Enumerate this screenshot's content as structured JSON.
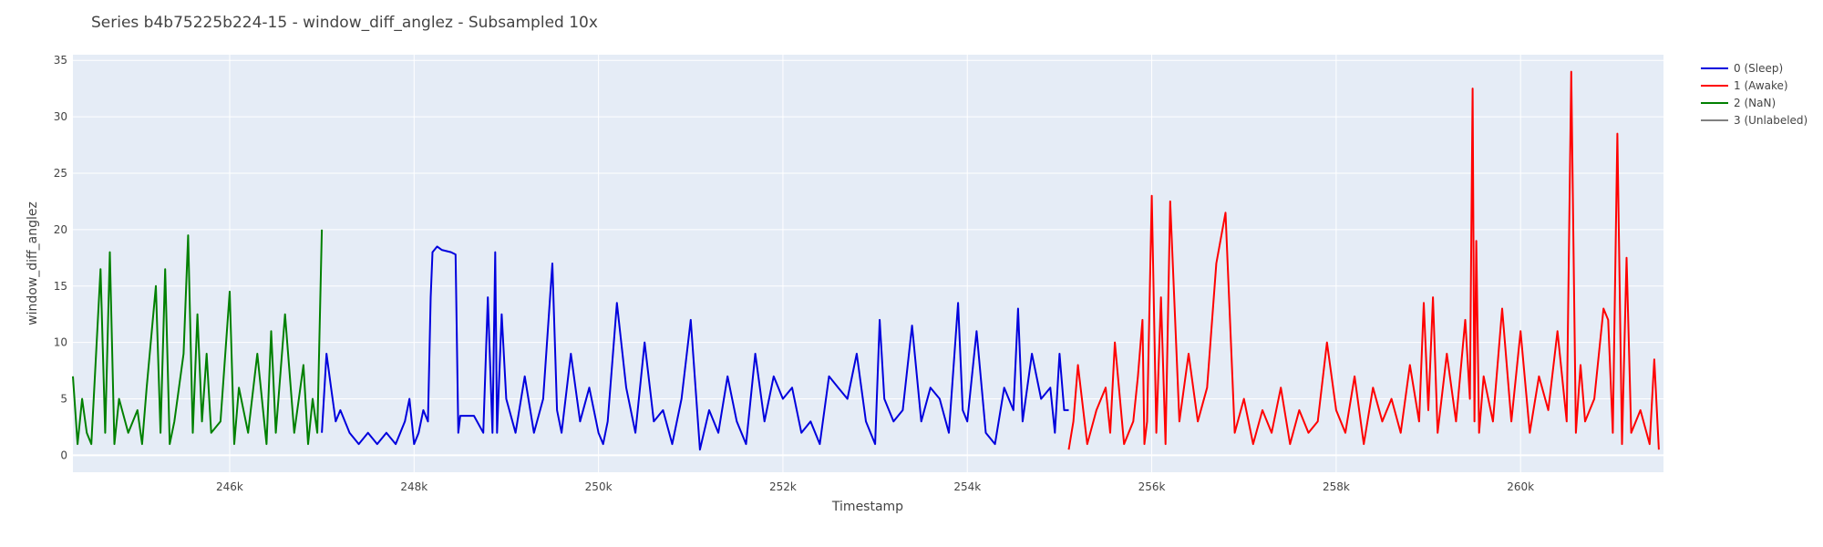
{
  "chart_data": {
    "type": "line",
    "title": "Series b4b75225b224-15 - window_diff_anglez - Subsampled 10x",
    "xlabel": "Timestamp",
    "ylabel": "window_diff_anglez",
    "xlim": [
      244300,
      261550
    ],
    "ylim": [
      -1.5,
      35.5
    ],
    "x_ticks": [
      246000,
      248000,
      250000,
      252000,
      254000,
      256000,
      258000,
      260000
    ],
    "x_tick_labels": [
      "246k",
      "248k",
      "250k",
      "252k",
      "254k",
      "256k",
      "258k",
      "260k"
    ],
    "y_ticks": [
      0,
      5,
      10,
      15,
      20,
      25,
      30,
      35
    ],
    "y_tick_labels": [
      "0",
      "5",
      "10",
      "15",
      "20",
      "25",
      "30",
      "35"
    ],
    "grid": true,
    "legend_position": "right",
    "series": [
      {
        "name": "0 (Sleep)",
        "color": "#0000dd",
        "x": [
          247000,
          247050,
          247100,
          247150,
          247200,
          247300,
          247400,
          247500,
          247600,
          247700,
          247800,
          247900,
          247950,
          248000,
          248050,
          248100,
          248150,
          248180,
          248200,
          248250,
          248300,
          248400,
          248450,
          248480,
          248500,
          248550,
          248650,
          248750,
          248800,
          248850,
          248880,
          248900,
          248950,
          249000,
          249100,
          249200,
          249300,
          249400,
          249500,
          249550,
          249600,
          249700,
          249800,
          249900,
          250000,
          250050,
          250100,
          250200,
          250300,
          250400,
          250500,
          250600,
          250700,
          250800,
          250900,
          251000,
          251100,
          251200,
          251300,
          251400,
          251500,
          251600,
          251700,
          251800,
          251900,
          252000,
          252100,
          252200,
          252300,
          252400,
          252500,
          252600,
          252700,
          252800,
          252900,
          253000,
          253050,
          253100,
          253200,
          253300,
          253400,
          253500,
          253600,
          253700,
          253800,
          253900,
          253950,
          254000,
          254100,
          254200,
          254300,
          254400,
          254500,
          254550,
          254600,
          254700,
          254800,
          254900,
          254950,
          255000,
          255050,
          255100
        ],
        "y": [
          2,
          9,
          6,
          3,
          4,
          2,
          1,
          2,
          1,
          2,
          1,
          3,
          5,
          1,
          2,
          4,
          3,
          14,
          18,
          18.5,
          18.2,
          18,
          17.8,
          2,
          3.5,
          3.5,
          3.5,
          2,
          14,
          2,
          18,
          2,
          12.5,
          5,
          2,
          7,
          2,
          5,
          17,
          4,
          2,
          9,
          3,
          6,
          2,
          1,
          3,
          13.5,
          6,
          2,
          10,
          3,
          4,
          1,
          5,
          12,
          0.5,
          4,
          2,
          7,
          3,
          1,
          9,
          3,
          7,
          5,
          6,
          2,
          3,
          1,
          7,
          6,
          5,
          9,
          3,
          1,
          12,
          5,
          3,
          4,
          11.5,
          3,
          6,
          5,
          2,
          13.5,
          4,
          3,
          11,
          2,
          1,
          6,
          4,
          13,
          3,
          9,
          5,
          6,
          2,
          9,
          4,
          4
        ]
      },
      {
        "name": "1 (Awake)",
        "color": "#ff0000",
        "x": [
          255100,
          255150,
          255200,
          255300,
          255400,
          255500,
          255550,
          255600,
          255700,
          255800,
          255850,
          255900,
          255920,
          255950,
          256000,
          256050,
          256100,
          256150,
          256200,
          256300,
          256400,
          256500,
          256600,
          256700,
          256800,
          256900,
          257000,
          257100,
          257200,
          257300,
          257400,
          257500,
          257600,
          257700,
          257800,
          257900,
          258000,
          258100,
          258200,
          258300,
          258400,
          258500,
          258600,
          258700,
          258800,
          258900,
          258950,
          259000,
          259050,
          259100,
          259200,
          259300,
          259400,
          259450,
          259480,
          259500,
          259520,
          259550,
          259600,
          259700,
          259800,
          259900,
          260000,
          260100,
          260200,
          260300,
          260400,
          260500,
          260550,
          260600,
          260650,
          260700,
          260800,
          260900,
          260950,
          261000,
          261050,
          261100,
          261150,
          261200,
          261300,
          261400,
          261450,
          261500
        ],
        "y": [
          0.5,
          3,
          8,
          1,
          4,
          6,
          2,
          10,
          1,
          3,
          7,
          12,
          1,
          3,
          23,
          2,
          14,
          1,
          22.5,
          3,
          9,
          3,
          6,
          17,
          21.5,
          2,
          5,
          1,
          4,
          2,
          6,
          1,
          4,
          2,
          3,
          10,
          4,
          2,
          7,
          1,
          6,
          3,
          5,
          2,
          8,
          3,
          13.5,
          4,
          14,
          2,
          9,
          3,
          12,
          5,
          32.5,
          3,
          19,
          2,
          7,
          3,
          13,
          3,
          11,
          2,
          7,
          4,
          11,
          3,
          34,
          2,
          8,
          3,
          5,
          13,
          12,
          2,
          28.5,
          1,
          17.5,
          2,
          4,
          1,
          8.5,
          0.5
        ]
      },
      {
        "name": "2 (NaN)",
        "color": "#008000",
        "x": [
          244300,
          244350,
          244400,
          244450,
          244500,
          244600,
          244650,
          244700,
          244750,
          244800,
          244900,
          245000,
          245050,
          245100,
          245200,
          245250,
          245300,
          245350,
          245400,
          245500,
          245550,
          245600,
          245650,
          245700,
          245750,
          245800,
          245900,
          246000,
          246050,
          246100,
          246200,
          246300,
          246400,
          246450,
          246500,
          246600,
          246700,
          246800,
          246850,
          246900,
          246950,
          247000
        ],
        "y": [
          7,
          1,
          5,
          2,
          1,
          16.5,
          2,
          18,
          1,
          5,
          2,
          4,
          1,
          6,
          15,
          2,
          16.5,
          1,
          3,
          9,
          19.5,
          2,
          12.5,
          3,
          9,
          2,
          3,
          14.5,
          1,
          6,
          2,
          9,
          1,
          11,
          2,
          12.5,
          2,
          8,
          1,
          5,
          2,
          20
        ]
      },
      {
        "name": "3 (Unlabeled)",
        "color": "#808080",
        "x": [],
        "y": []
      }
    ]
  }
}
